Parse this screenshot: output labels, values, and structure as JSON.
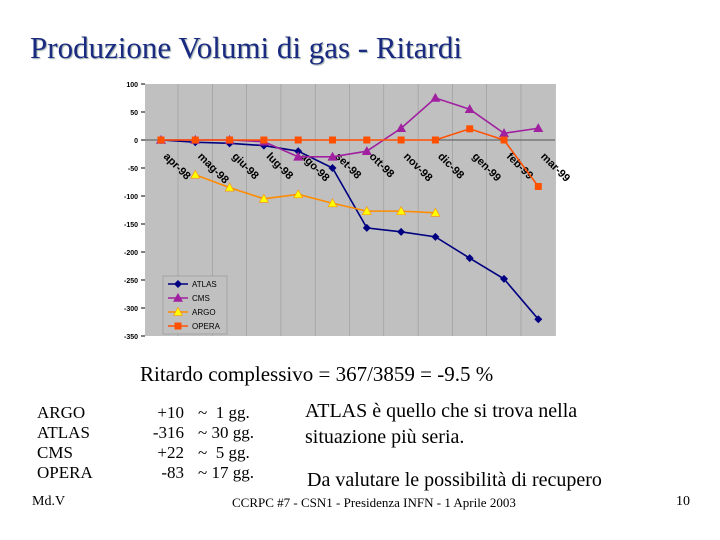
{
  "title": "Produzione Volumi di gas - Ritardi",
  "chart_data": {
    "type": "line",
    "categories": [
      "apr-98",
      "mag-98",
      "giu-98",
      "lug-98",
      "ago-98",
      "set-98",
      "ott-98",
      "nov-98",
      "dic-98",
      "gen-99",
      "feb-99",
      "mar-99"
    ],
    "series": [
      {
        "name": "ATLAS",
        "color": "#000080",
        "marker": "diamond",
        "values": [
          0,
          -4,
          -6,
          -10,
          -20,
          -50,
          -157,
          -164,
          -173,
          -211,
          -248,
          -320
        ]
      },
      {
        "name": "CMS",
        "color": "#a020a0",
        "marker": "triangle",
        "values": [
          0,
          0,
          0,
          -3,
          -30,
          -30,
          -20,
          21,
          75,
          55,
          12,
          21
        ]
      },
      {
        "name": "ARGO",
        "color": "#ff8c00",
        "marker": "triangle",
        "values": [
          null,
          -62,
          -85,
          -105,
          -97,
          -113,
          -127,
          -127,
          -130,
          null,
          null,
          null
        ]
      },
      {
        "name": "OPERA",
        "color": "#ff5000",
        "marker": "square",
        "values": [
          0,
          0,
          0,
          0,
          0,
          0,
          0,
          0,
          0,
          20,
          0,
          -83
        ]
      }
    ],
    "ylim": [
      -350,
      100
    ],
    "yticks": [
      -350,
      -300,
      -250,
      -200,
      -150,
      -100,
      -50,
      0,
      50,
      100
    ],
    "legend": "lower-left",
    "background": "#c0c0c0"
  },
  "summary": "Ritardo complessivo = 367/3859 = -9.5 %",
  "table": {
    "rows": [
      [
        "ARGO",
        "+10",
        "~  1 gg."
      ],
      [
        "ATLAS",
        "-316",
        "~ 30 gg."
      ],
      [
        "CMS",
        "+22",
        "~  5 gg."
      ],
      [
        "OPERA",
        "-83",
        "~ 17 gg."
      ]
    ]
  },
  "notes": [
    "ATLAS è quello che si trova nella situazione più seria.",
    "Da valutare le possibilità di recupero"
  ],
  "footer": {
    "author": "Md.V",
    "center": "CCRPC #7 - CSN1 - Presidenza INFN - 1 Aprile 2003",
    "page": "10"
  }
}
